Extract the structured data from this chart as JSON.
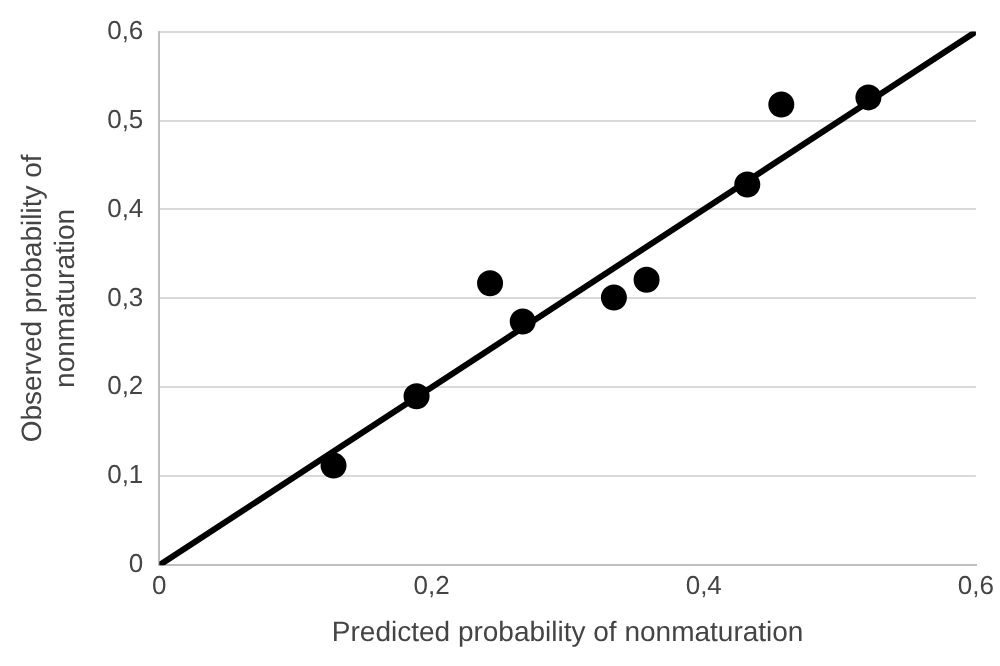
{
  "chart_data": {
    "type": "scatter",
    "xlabel": "Predicted probability of nonmaturation",
    "ylabel": "Observed probability of nonmaturation",
    "x": [
      0.128,
      0.189,
      0.243,
      0.267,
      0.334,
      0.358,
      0.432,
      0.457,
      0.521
    ],
    "series": [
      {
        "color": "#000000",
        "values": [
          0.112,
          0.19,
          0.317,
          0.274,
          0.301,
          0.321,
          0.428,
          0.518,
          0.526
        ],
        "marker": "circle"
      },
      {
        "type": "line",
        "color": "#000000",
        "x": [
          0,
          0.6
        ],
        "values": [
          0,
          0.6
        ],
        "marker": "none",
        "line_style": "solid"
      }
    ],
    "xlim": [
      0,
      0.6
    ],
    "ylim": [
      0,
      0.6
    ],
    "xticks": [
      0,
      {
        "value": 0.2,
        "label": "0,2"
      },
      {
        "value": 0.4,
        "label": "0,4"
      },
      {
        "value": 0.6,
        "label": "0,6"
      }
    ],
    "yticks": [
      0,
      {
        "value": 0.1,
        "label": "0,1"
      },
      {
        "value": 0.2,
        "label": "0,2"
      },
      {
        "value": 0.3,
        "label": "0,3"
      },
      {
        "value": 0.4,
        "label": "0,4"
      },
      {
        "value": 0.5,
        "label": "0,5"
      },
      {
        "value": 0.6,
        "label": "0,6"
      }
    ],
    "grid": "y",
    "legend": false
  }
}
